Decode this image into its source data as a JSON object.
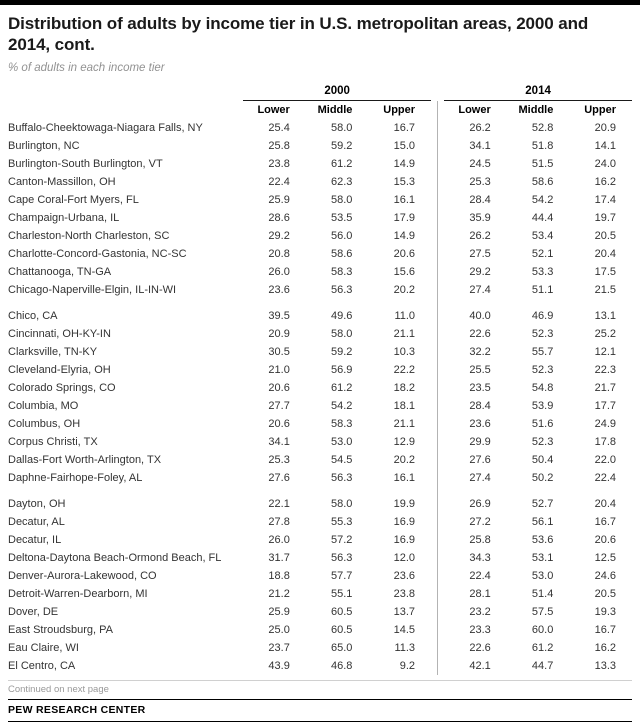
{
  "chart_data": {
    "type": "table",
    "title": "Distribution of adults by income tier in U.S. metropolitan areas, 2000 and 2014, cont.",
    "subtitle": "% of adults in each income tier",
    "unit": "% of adults in each income tier",
    "column_groups": [
      "2000",
      "2014"
    ],
    "sub_columns": [
      "Lower",
      "Middle",
      "Upper"
    ],
    "row_groups": [
      [
        {
          "name": "Buffalo-Cheektowaga-Niagara Falls, NY",
          "y2000": [
            "25.4",
            "58.0",
            "16.7"
          ],
          "y2014": [
            "26.2",
            "52.8",
            "20.9"
          ]
        },
        {
          "name": "Burlington, NC",
          "y2000": [
            "25.8",
            "59.2",
            "15.0"
          ],
          "y2014": [
            "34.1",
            "51.8",
            "14.1"
          ]
        },
        {
          "name": "Burlington-South Burlington, VT",
          "y2000": [
            "23.8",
            "61.2",
            "14.9"
          ],
          "y2014": [
            "24.5",
            "51.5",
            "24.0"
          ]
        },
        {
          "name": "Canton-Massillon, OH",
          "y2000": [
            "22.4",
            "62.3",
            "15.3"
          ],
          "y2014": [
            "25.3",
            "58.6",
            "16.2"
          ]
        },
        {
          "name": "Cape Coral-Fort Myers, FL",
          "y2000": [
            "25.9",
            "58.0",
            "16.1"
          ],
          "y2014": [
            "28.4",
            "54.2",
            "17.4"
          ]
        },
        {
          "name": "Champaign-Urbana, IL",
          "y2000": [
            "28.6",
            "53.5",
            "17.9"
          ],
          "y2014": [
            "35.9",
            "44.4",
            "19.7"
          ]
        },
        {
          "name": "Charleston-North Charleston, SC",
          "y2000": [
            "29.2",
            "56.0",
            "14.9"
          ],
          "y2014": [
            "26.2",
            "53.4",
            "20.5"
          ]
        },
        {
          "name": "Charlotte-Concord-Gastonia, NC-SC",
          "y2000": [
            "20.8",
            "58.6",
            "20.6"
          ],
          "y2014": [
            "27.5",
            "52.1",
            "20.4"
          ]
        },
        {
          "name": "Chattanooga, TN-GA",
          "y2000": [
            "26.0",
            "58.3",
            "15.6"
          ],
          "y2014": [
            "29.2",
            "53.3",
            "17.5"
          ]
        },
        {
          "name": "Chicago-Naperville-Elgin, IL-IN-WI",
          "y2000": [
            "23.6",
            "56.3",
            "20.2"
          ],
          "y2014": [
            "27.4",
            "51.1",
            "21.5"
          ]
        }
      ],
      [
        {
          "name": "Chico, CA",
          "y2000": [
            "39.5",
            "49.6",
            "11.0"
          ],
          "y2014": [
            "40.0",
            "46.9",
            "13.1"
          ]
        },
        {
          "name": "Cincinnati, OH-KY-IN",
          "y2000": [
            "20.9",
            "58.0",
            "21.1"
          ],
          "y2014": [
            "22.6",
            "52.3",
            "25.2"
          ]
        },
        {
          "name": "Clarksville, TN-KY",
          "y2000": [
            "30.5",
            "59.2",
            "10.3"
          ],
          "y2014": [
            "32.2",
            "55.7",
            "12.1"
          ]
        },
        {
          "name": "Cleveland-Elyria, OH",
          "y2000": [
            "21.0",
            "56.9",
            "22.2"
          ],
          "y2014": [
            "25.5",
            "52.3",
            "22.3"
          ]
        },
        {
          "name": "Colorado Springs, CO",
          "y2000": [
            "20.6",
            "61.2",
            "18.2"
          ],
          "y2014": [
            "23.5",
            "54.8",
            "21.7"
          ]
        },
        {
          "name": "Columbia, MO",
          "y2000": [
            "27.7",
            "54.2",
            "18.1"
          ],
          "y2014": [
            "28.4",
            "53.9",
            "17.7"
          ]
        },
        {
          "name": "Columbus, OH",
          "y2000": [
            "20.6",
            "58.3",
            "21.1"
          ],
          "y2014": [
            "23.6",
            "51.6",
            "24.9"
          ]
        },
        {
          "name": "Corpus Christi, TX",
          "y2000": [
            "34.1",
            "53.0",
            "12.9"
          ],
          "y2014": [
            "29.9",
            "52.3",
            "17.8"
          ]
        },
        {
          "name": "Dallas-Fort Worth-Arlington, TX",
          "y2000": [
            "25.3",
            "54.5",
            "20.2"
          ],
          "y2014": [
            "27.6",
            "50.4",
            "22.0"
          ]
        },
        {
          "name": "Daphne-Fairhope-Foley, AL",
          "y2000": [
            "27.6",
            "56.3",
            "16.1"
          ],
          "y2014": [
            "27.4",
            "50.2",
            "22.4"
          ]
        }
      ],
      [
        {
          "name": "Dayton, OH",
          "y2000": [
            "22.1",
            "58.0",
            "19.9"
          ],
          "y2014": [
            "26.9",
            "52.7",
            "20.4"
          ]
        },
        {
          "name": "Decatur, AL",
          "y2000": [
            "27.8",
            "55.3",
            "16.9"
          ],
          "y2014": [
            "27.2",
            "56.1",
            "16.7"
          ]
        },
        {
          "name": "Decatur, IL",
          "y2000": [
            "26.0",
            "57.2",
            "16.9"
          ],
          "y2014": [
            "25.8",
            "53.6",
            "20.6"
          ]
        },
        {
          "name": "Deltona-Daytona Beach-Ormond Beach, FL",
          "y2000": [
            "31.7",
            "56.3",
            "12.0"
          ],
          "y2014": [
            "34.3",
            "53.1",
            "12.5"
          ]
        },
        {
          "name": "Denver-Aurora-Lakewood, CO",
          "y2000": [
            "18.8",
            "57.7",
            "23.6"
          ],
          "y2014": [
            "22.4",
            "53.0",
            "24.6"
          ]
        },
        {
          "name": "Detroit-Warren-Dearborn, MI",
          "y2000": [
            "21.2",
            "55.1",
            "23.8"
          ],
          "y2014": [
            "28.1",
            "51.4",
            "20.5"
          ]
        },
        {
          "name": "Dover, DE",
          "y2000": [
            "25.9",
            "60.5",
            "13.7"
          ],
          "y2014": [
            "23.2",
            "57.5",
            "19.3"
          ]
        },
        {
          "name": "East Stroudsburg, PA",
          "y2000": [
            "25.0",
            "60.5",
            "14.5"
          ],
          "y2014": [
            "23.3",
            "60.0",
            "16.7"
          ]
        },
        {
          "name": "Eau Claire, WI",
          "y2000": [
            "23.7",
            "65.0",
            "11.3"
          ],
          "y2014": [
            "22.6",
            "61.2",
            "16.2"
          ]
        },
        {
          "name": "El Centro, CA",
          "y2000": [
            "43.9",
            "46.8",
            "9.2"
          ],
          "y2014": [
            "42.1",
            "44.7",
            "13.3"
          ]
        }
      ]
    ]
  },
  "footer": {
    "continued_note": "Continued on next page",
    "brand": "PEW RESEARCH CENTER"
  }
}
